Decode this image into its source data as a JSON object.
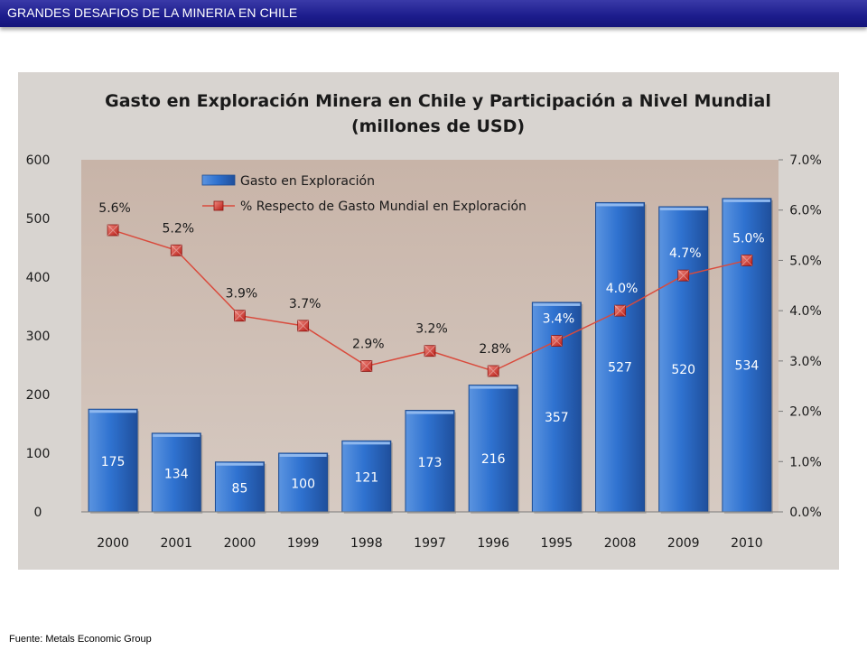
{
  "header": {
    "title": "GRANDES DESAFIOS DE LA MINERIA EN CHILE"
  },
  "footer": {
    "source": "Fuente: Metals Economic Group"
  },
  "colors": {
    "bar": "#2f6fc9",
    "line": "#d94a3c",
    "marker": "#d02a22",
    "panel": "#d8d4d0",
    "plot": "#cdbbb0"
  },
  "chart_data": {
    "type": "bar",
    "title_line1": "Gasto en Exploración Minera en Chile y Participación a Nivel Mundial",
    "title_line2": "(millones de USD)",
    "categories": [
      "2000",
      "2001",
      "2000",
      "1999",
      "1998",
      "1997",
      "1996",
      "1995",
      "2008",
      "2009",
      "2010"
    ],
    "series": [
      {
        "name": "Gasto en Exploración",
        "type": "bar",
        "axis": "left",
        "values": [
          175,
          134,
          85,
          100,
          121,
          173,
          216,
          357,
          527,
          520,
          534
        ],
        "labels": [
          "175",
          "134",
          "85",
          "100",
          "121",
          "173",
          "216",
          "357",
          "527",
          "520",
          "534"
        ]
      },
      {
        "name": "% Respecto de Gasto  Mundial en Exploración",
        "type": "line",
        "axis": "right",
        "values": [
          5.6,
          5.2,
          3.9,
          3.7,
          2.9,
          3.2,
          2.8,
          3.4,
          4.0,
          4.7,
          5.0
        ],
        "labels": [
          "5.6%",
          "5.2%",
          "3.9%",
          "3.7%",
          "2.9%",
          "3.2%",
          "2.8%",
          "3.4%",
          "4.0%",
          "4.7%",
          "5.0%"
        ]
      }
    ],
    "y_left": {
      "min": 0,
      "max": 600,
      "ticks": [
        0,
        100,
        200,
        300,
        400,
        500,
        600
      ],
      "tick_labels": [
        "0",
        "100",
        "200",
        "300",
        "400",
        "500",
        "600"
      ]
    },
    "y_right": {
      "min": 0,
      "max": 7,
      "ticks": [
        0,
        1,
        2,
        3,
        4,
        5,
        6,
        7
      ],
      "tick_labels": [
        "0.0%",
        "1.0%",
        "2.0%",
        "3.0%",
        "4.0%",
        "5.0%",
        "6.0%",
        "7.0%"
      ]
    },
    "grid": false,
    "legend": "top-left"
  }
}
